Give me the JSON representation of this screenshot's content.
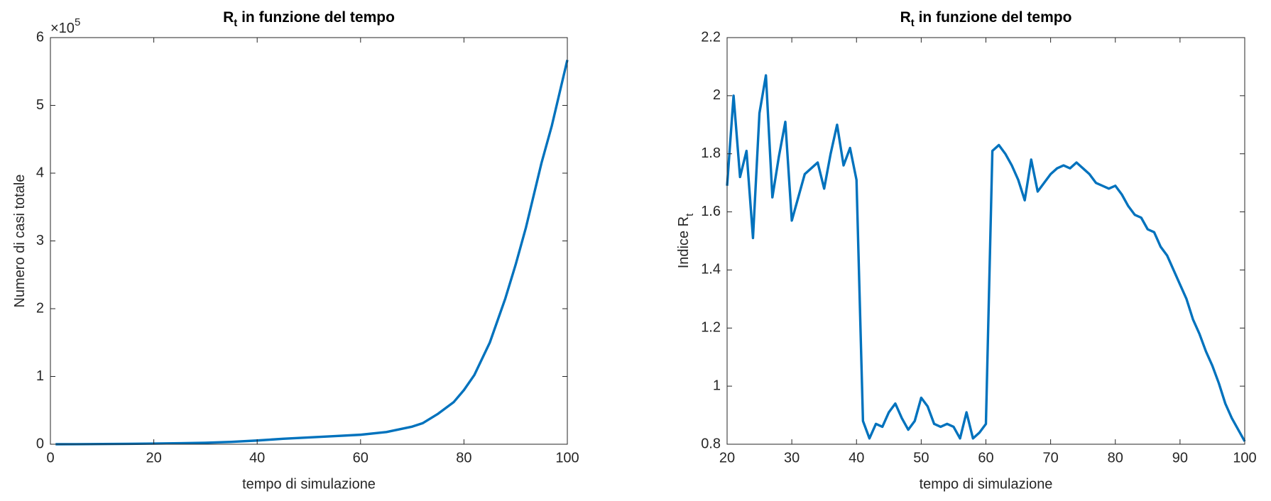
{
  "chart_data": [
    {
      "type": "line",
      "title": [
        "R",
        "t",
        " in funzione del tempo"
      ],
      "xlabel": "tempo di simulazione",
      "ylabel": [
        "Numero di casi totale"
      ],
      "y_multiplier": [
        "×10",
        "5"
      ],
      "x": [
        1,
        5,
        10,
        15,
        20,
        25,
        30,
        35,
        40,
        45,
        50,
        55,
        60,
        65,
        70,
        72,
        75,
        78,
        80,
        82,
        85,
        88,
        90,
        92,
        95,
        97,
        100
      ],
      "series": [
        {
          "color": "#0072bd",
          "values": [
            0,
            100,
            300,
            600,
            1000,
            1500,
            2200,
            3500,
            5500,
            8000,
            10000,
            12000,
            14000,
            18000,
            26000,
            31000,
            45000,
            62000,
            80000,
            102000,
            150000,
            215000,
            265000,
            320000,
            415000,
            470000,
            567000
          ]
        }
      ],
      "xlim": [
        0,
        100
      ],
      "xticks": [
        0,
        20,
        40,
        60,
        80,
        100
      ],
      "ylim": [
        0,
        600000
      ],
      "yticks": [
        0,
        {
          "value": 100000,
          "label": "1"
        },
        {
          "value": 200000,
          "label": "2"
        },
        {
          "value": 300000,
          "label": "3"
        },
        {
          "value": 400000,
          "label": "4"
        },
        {
          "value": 500000,
          "label": "5"
        },
        {
          "value": 600000,
          "label": "6"
        }
      ],
      "grid": false
    },
    {
      "type": "line",
      "title": [
        "R",
        "t",
        " in funzione del tempo"
      ],
      "xlabel": "tempo di simulazione",
      "ylabel": [
        "Indice R",
        "t"
      ],
      "x": [
        20,
        21,
        22,
        23,
        24,
        25,
        26,
        27,
        28,
        29,
        30,
        31,
        32,
        33,
        34,
        35,
        36,
        37,
        38,
        39,
        40,
        41,
        42,
        43,
        44,
        45,
        46,
        47,
        48,
        49,
        50,
        51,
        52,
        53,
        54,
        55,
        56,
        57,
        58,
        59,
        60,
        61,
        62,
        63,
        64,
        65,
        66,
        67,
        68,
        69,
        70,
        71,
        72,
        73,
        74,
        75,
        76,
        77,
        78,
        79,
        80,
        81,
        82,
        83,
        84,
        85,
        86,
        87,
        88,
        89,
        90,
        91,
        92,
        93,
        94,
        95,
        96,
        97,
        98,
        99,
        100
      ],
      "series": [
        {
          "color": "#0072bd",
          "values": [
            1.69,
            2.0,
            1.72,
            1.81,
            1.51,
            1.94,
            2.07,
            1.65,
            1.79,
            1.91,
            1.57,
            1.65,
            1.73,
            1.75,
            1.77,
            1.68,
            1.8,
            1.9,
            1.76,
            1.82,
            1.71,
            0.88,
            0.82,
            0.87,
            0.86,
            0.91,
            0.94,
            0.89,
            0.85,
            0.88,
            0.96,
            0.93,
            0.87,
            0.86,
            0.87,
            0.86,
            0.82,
            0.91,
            0.82,
            0.84,
            0.87,
            1.81,
            1.83,
            1.8,
            1.76,
            1.71,
            1.64,
            1.78,
            1.67,
            1.7,
            1.73,
            1.75,
            1.76,
            1.75,
            1.77,
            1.75,
            1.73,
            1.7,
            1.69,
            1.68,
            1.69,
            1.66,
            1.62,
            1.59,
            1.58,
            1.54,
            1.53,
            1.48,
            1.45,
            1.4,
            1.35,
            1.3,
            1.23,
            1.18,
            1.12,
            1.07,
            1.01,
            0.94,
            0.89,
            0.85,
            0.81
          ]
        }
      ],
      "xlim": [
        20,
        100
      ],
      "xticks": [
        20,
        30,
        40,
        50,
        60,
        70,
        80,
        90,
        100
      ],
      "ylim": [
        0.8,
        2.2
      ],
      "yticks": [
        0.8,
        1,
        1.2,
        1.4,
        1.6,
        1.8,
        2,
        2.2
      ],
      "grid": false
    }
  ]
}
